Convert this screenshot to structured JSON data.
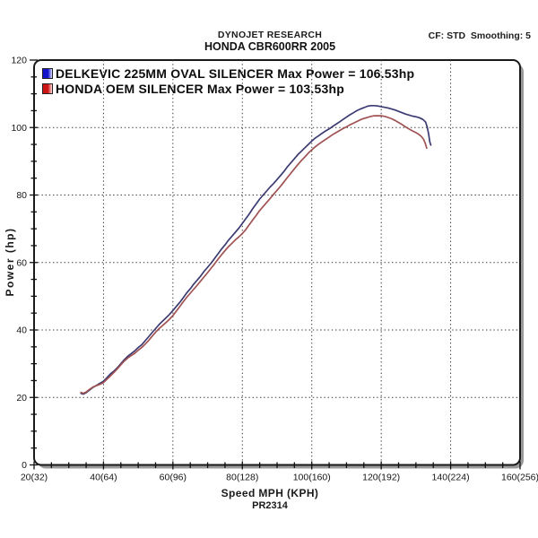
{
  "header": {
    "brand": "DYNOJET RESEARCH",
    "model": "HONDA CBR600RR 2005",
    "cf_smoothing": "CF: STD  Smoothing: 5"
  },
  "legend": [
    {
      "label": "DELKEVIC 225MM OVAL SILENCER Max Power = 106.53hp",
      "swatch_color": "#1414cc",
      "swatch_light": "#dcdcff"
    },
    {
      "label": "HONDA OEM SILENCER Max Power = 103.53hp",
      "swatch_color": "#cc1414",
      "swatch_light": "#ffdcdc"
    }
  ],
  "axes": {
    "ylabel": "Power (hp)",
    "xlabel": "Speed MPH (KPH)",
    "run_id": "PR2314"
  },
  "chart_data": {
    "type": "line",
    "title": "DYNOJET RESEARCH HONDA CBR600RR 2005",
    "xlabel": "Speed MPH (KPH)",
    "ylabel": "Power (hp)",
    "xlim": [
      20,
      160
    ],
    "ylim": [
      0,
      120
    ],
    "x_major_step": 20,
    "y_major_step": 20,
    "minor_step": 5,
    "grid": "dotted",
    "legend_position": "top-left",
    "x_tick_labels": [
      "20(32)",
      "40(64)",
      "60(96)",
      "80(128)",
      "100(160)",
      "120(192)",
      "140(224)",
      "160(256)"
    ],
    "x_tick_values": [
      20,
      40,
      60,
      80,
      100,
      120,
      140,
      160
    ],
    "y_tick_labels": [
      "0",
      "20",
      "40",
      "60",
      "80",
      "100",
      "120"
    ],
    "y_tick_values": [
      0,
      20,
      40,
      60,
      80,
      100,
      120
    ],
    "series": [
      {
        "name": "DELKEVIC 225MM OVAL SILENCER",
        "max_power_hp": 106.53,
        "color": "#3b3b73",
        "points": [
          [
            33.5,
            21.2
          ],
          [
            34.2,
            21.0
          ],
          [
            35,
            21.4
          ],
          [
            36,
            22.2
          ],
          [
            37,
            23.0
          ],
          [
            38,
            23.6
          ],
          [
            39,
            24.2
          ],
          [
            40,
            24.8
          ],
          [
            41,
            25.9
          ],
          [
            42,
            27.0
          ],
          [
            43,
            27.8
          ],
          [
            44,
            28.8
          ],
          [
            45,
            30.0
          ],
          [
            46,
            31.2
          ],
          [
            47,
            32.2
          ],
          [
            48,
            33.0
          ],
          [
            49,
            33.8
          ],
          [
            50,
            34.8
          ],
          [
            51,
            35.6
          ],
          [
            52,
            36.8
          ],
          [
            53,
            38.0
          ],
          [
            54,
            39.2
          ],
          [
            55,
            40.4
          ],
          [
            56,
            41.6
          ],
          [
            57,
            42.6
          ],
          [
            58,
            43.6
          ],
          [
            59,
            44.6
          ],
          [
            60,
            45.8
          ],
          [
            61,
            47.0
          ],
          [
            62,
            48.2
          ],
          [
            63,
            49.6
          ],
          [
            64,
            51.0
          ],
          [
            65,
            52.2
          ],
          [
            66,
            53.6
          ],
          [
            67,
            54.8
          ],
          [
            68,
            56.0
          ],
          [
            69,
            57.4
          ],
          [
            70,
            58.6
          ],
          [
            71,
            59.8
          ],
          [
            72,
            61.2
          ],
          [
            73,
            62.6
          ],
          [
            74,
            64.0
          ],
          [
            75,
            65.2
          ],
          [
            76,
            66.6
          ],
          [
            77,
            67.8
          ],
          [
            78,
            69.0
          ],
          [
            79,
            70.2
          ],
          [
            80,
            71.6
          ],
          [
            81,
            73.0
          ],
          [
            82,
            74.4
          ],
          [
            83,
            76.0
          ],
          [
            84,
            77.4
          ],
          [
            85,
            78.8
          ],
          [
            86,
            80.0
          ],
          [
            87,
            81.2
          ],
          [
            88,
            82.4
          ],
          [
            89,
            83.4
          ],
          [
            90,
            84.6
          ],
          [
            91,
            85.8
          ],
          [
            92,
            87.0
          ],
          [
            93,
            88.4
          ],
          [
            94,
            89.6
          ],
          [
            95,
            90.8
          ],
          [
            96,
            92.0
          ],
          [
            97,
            93.0
          ],
          [
            98,
            94.0
          ],
          [
            99,
            95.0
          ],
          [
            100,
            96.0
          ],
          [
            101,
            96.9
          ],
          [
            102,
            97.6
          ],
          [
            103,
            98.3
          ],
          [
            104,
            99.0
          ],
          [
            105,
            99.6
          ],
          [
            106,
            100.3
          ],
          [
            107,
            101.0
          ],
          [
            108,
            101.7
          ],
          [
            109,
            102.4
          ],
          [
            110,
            103.1
          ],
          [
            111,
            103.8
          ],
          [
            112,
            104.4
          ],
          [
            113,
            105.0
          ],
          [
            114,
            105.5
          ],
          [
            115,
            105.9
          ],
          [
            116,
            106.3
          ],
          [
            117,
            106.5
          ],
          [
            118,
            106.5
          ],
          [
            119,
            106.4
          ],
          [
            120,
            106.2
          ],
          [
            121,
            106.0
          ],
          [
            122,
            105.8
          ],
          [
            123,
            105.5
          ],
          [
            124,
            105.2
          ],
          [
            125,
            104.8
          ],
          [
            126,
            104.4
          ],
          [
            127,
            104.0
          ],
          [
            128,
            103.7
          ],
          [
            129,
            103.4
          ],
          [
            130,
            103.2
          ],
          [
            131,
            102.9
          ],
          [
            132,
            102.4
          ],
          [
            132.8,
            101.6
          ],
          [
            133.3,
            100.0
          ],
          [
            133.7,
            97.8
          ],
          [
            134.0,
            95.8
          ],
          [
            134.3,
            94.8
          ]
        ]
      },
      {
        "name": "HONDA OEM SILENCER",
        "max_power_hp": 103.53,
        "color": "#a05252",
        "points": [
          [
            33.5,
            21.5
          ],
          [
            34.2,
            21.2
          ],
          [
            35,
            21.6
          ],
          [
            36,
            22.4
          ],
          [
            37,
            23.1
          ],
          [
            38,
            23.5
          ],
          [
            39,
            23.9
          ],
          [
            40,
            24.4
          ],
          [
            41,
            25.4
          ],
          [
            42,
            26.4
          ],
          [
            43,
            27.4
          ],
          [
            44,
            28.5
          ],
          [
            45,
            29.7
          ],
          [
            46,
            30.8
          ],
          [
            47,
            31.7
          ],
          [
            48,
            32.4
          ],
          [
            49,
            33.1
          ],
          [
            50,
            34.0
          ],
          [
            51,
            34.8
          ],
          [
            52,
            35.8
          ],
          [
            53,
            36.9
          ],
          [
            54,
            38.1
          ],
          [
            55,
            39.3
          ],
          [
            56,
            40.4
          ],
          [
            57,
            41.3
          ],
          [
            58,
            42.2
          ],
          [
            59,
            43.2
          ],
          [
            60,
            44.3
          ],
          [
            61,
            45.6
          ],
          [
            62,
            47.0
          ],
          [
            63,
            48.4
          ],
          [
            64,
            49.7
          ],
          [
            65,
            50.9
          ],
          [
            66,
            52.1
          ],
          [
            67,
            53.3
          ],
          [
            68,
            54.5
          ],
          [
            69,
            55.8
          ],
          [
            70,
            57.0
          ],
          [
            71,
            58.3
          ],
          [
            72,
            59.6
          ],
          [
            73,
            61.0
          ],
          [
            74,
            62.3
          ],
          [
            75,
            63.5
          ],
          [
            76,
            64.7
          ],
          [
            77,
            65.7
          ],
          [
            78,
            66.7
          ],
          [
            79,
            67.6
          ],
          [
            80,
            68.6
          ],
          [
            81,
            69.8
          ],
          [
            82,
            71.2
          ],
          [
            83,
            72.6
          ],
          [
            84,
            74.0
          ],
          [
            85,
            75.4
          ],
          [
            86,
            76.6
          ],
          [
            87,
            77.8
          ],
          [
            88,
            79.0
          ],
          [
            89,
            80.2
          ],
          [
            90,
            81.4
          ],
          [
            91,
            82.6
          ],
          [
            92,
            83.9
          ],
          [
            93,
            85.2
          ],
          [
            94,
            86.5
          ],
          [
            95,
            87.8
          ],
          [
            96,
            89.0
          ],
          [
            97,
            90.2
          ],
          [
            98,
            91.3
          ],
          [
            99,
            92.4
          ],
          [
            100,
            93.4
          ],
          [
            101,
            94.3
          ],
          [
            102,
            95.1
          ],
          [
            103,
            95.8
          ],
          [
            104,
            96.5
          ],
          [
            105,
            97.2
          ],
          [
            106,
            97.9
          ],
          [
            107,
            98.5
          ],
          [
            108,
            99.1
          ],
          [
            109,
            99.7
          ],
          [
            110,
            100.2
          ],
          [
            111,
            100.8
          ],
          [
            112,
            101.3
          ],
          [
            113,
            101.8
          ],
          [
            114,
            102.3
          ],
          [
            115,
            102.7
          ],
          [
            116,
            103.0
          ],
          [
            117,
            103.3
          ],
          [
            118,
            103.5
          ],
          [
            119,
            103.5
          ],
          [
            120,
            103.5
          ],
          [
            121,
            103.3
          ],
          [
            122,
            103.0
          ],
          [
            123,
            102.6
          ],
          [
            124,
            102.1
          ],
          [
            125,
            101.5
          ],
          [
            126,
            100.9
          ],
          [
            127,
            100.2
          ],
          [
            128,
            99.6
          ],
          [
            129,
            99.0
          ],
          [
            130,
            98.5
          ],
          [
            130.8,
            98.0
          ],
          [
            131.5,
            97.4
          ],
          [
            132.2,
            96.5
          ],
          [
            132.7,
            95.3
          ],
          [
            133.1,
            93.9
          ]
        ]
      }
    ]
  }
}
